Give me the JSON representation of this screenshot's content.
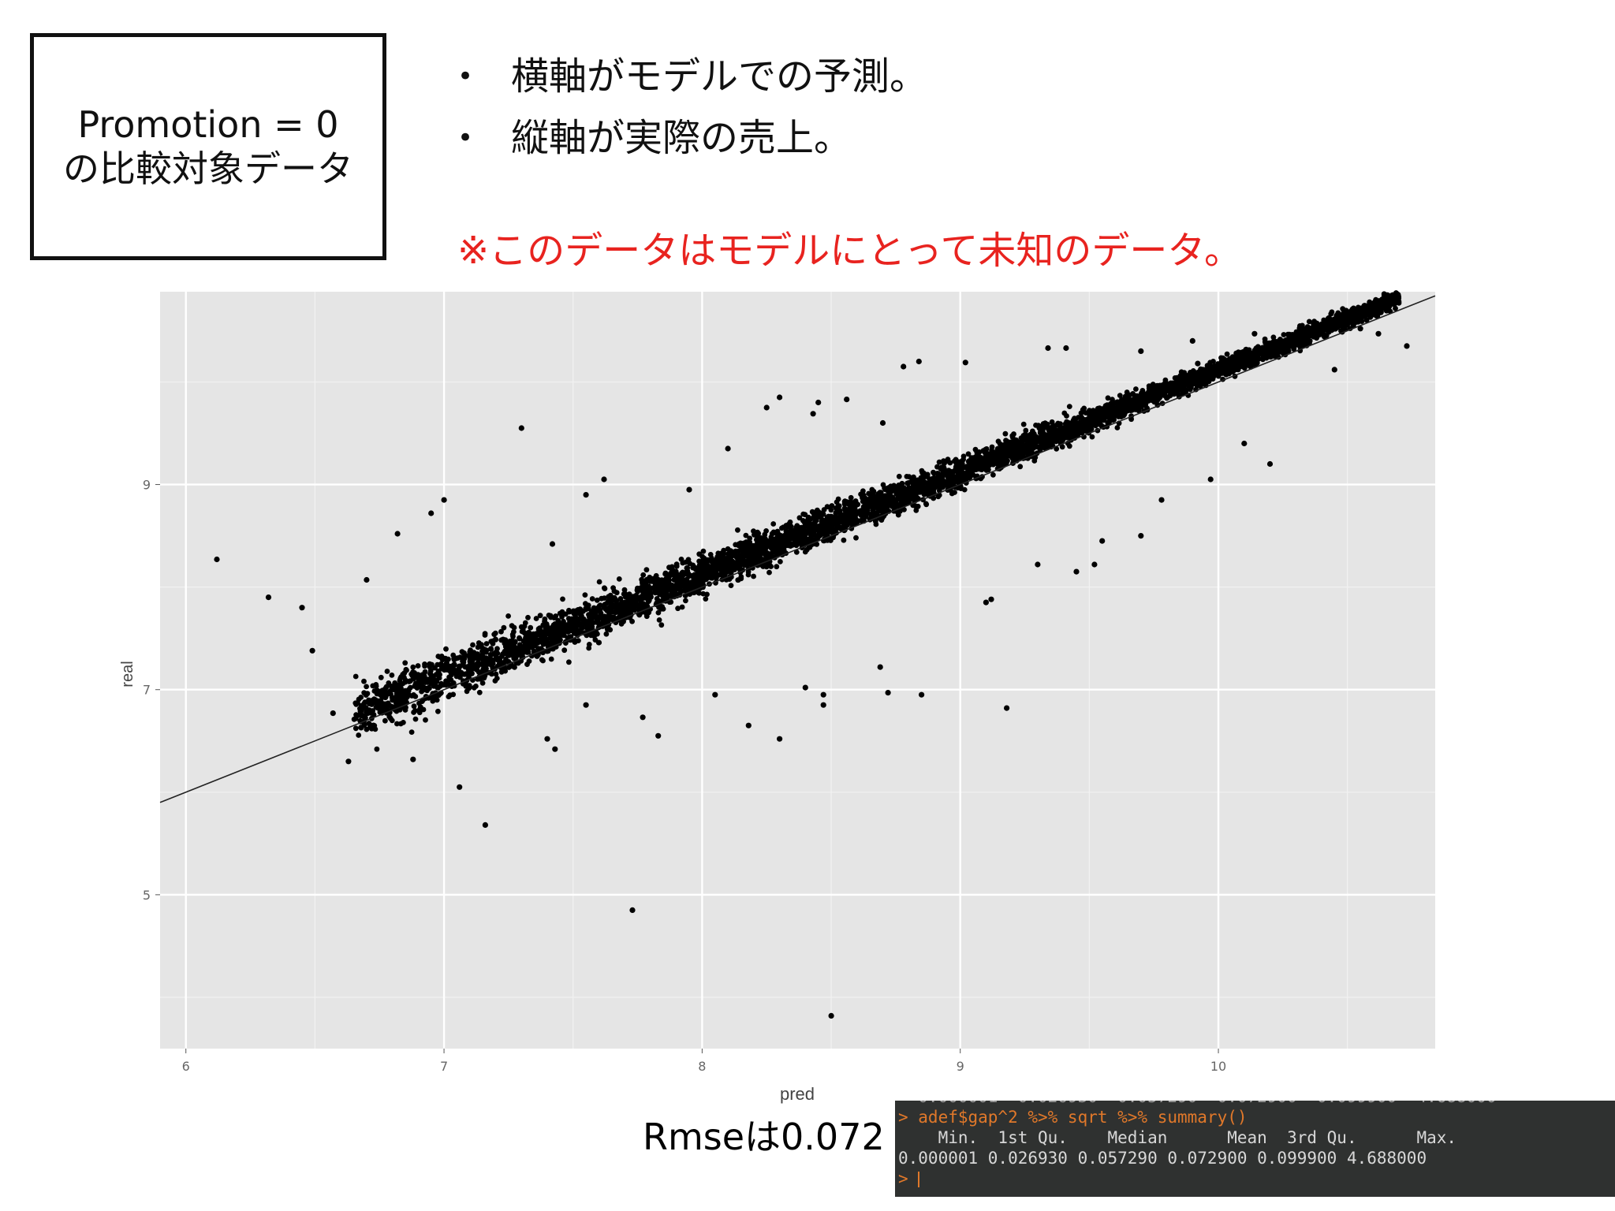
{
  "title_box": {
    "line1": "Promotion = 0",
    "line2": "の比較対象データ"
  },
  "bullets": [
    "横軸がモデルでの予測。",
    "縦軸が実際の売上。"
  ],
  "bullet_symbol": "•",
  "note": "※このデータはモデルにとって未知のデータ。",
  "note_color": "#e8231f",
  "rmse_label": "Rmseは0.072",
  "console": {
    "partial_line": "  0.000001  0.026930  0.057290  0.072900  0.099900  4.688000",
    "command": "> adef$gap^2 %>% sqrt %>% summary()",
    "header": "    Min.  1st Qu.    Median      Mean  3rd Qu.      Max.",
    "values": "0.000001 0.026930 0.057290 0.072900 0.099900 4.688000",
    "prompt": "> "
  },
  "chart_data": {
    "type": "scatter",
    "xlabel": "pred",
    "ylabel": "real",
    "xlim": [
      5.9,
      10.84
    ],
    "ylim": [
      3.5,
      10.88
    ],
    "x_ticks": [
      6,
      7,
      8,
      9,
      10
    ],
    "y_ticks": [
      5,
      7,
      9
    ],
    "grid": true,
    "background": "#e5e5e5",
    "point_color": "#000000",
    "reference_line": {
      "x": [
        5.9,
        10.84
      ],
      "y": [
        5.9,
        10.84
      ]
    },
    "outliers": [
      [
        6.12,
        8.27
      ],
      [
        6.49,
        7.38
      ],
      [
        6.7,
        8.07
      ],
      [
        6.82,
        8.52
      ],
      [
        6.95,
        8.72
      ],
      [
        6.63,
        6.3
      ],
      [
        7.06,
        6.05
      ],
      [
        7.16,
        5.68
      ],
      [
        7.73,
        4.85
      ],
      [
        8.5,
        3.82
      ],
      [
        9.18,
        6.82
      ],
      [
        9.1,
        7.85
      ],
      [
        9.12,
        7.88
      ],
      [
        7.4,
        6.52
      ],
      [
        7.43,
        6.42
      ],
      [
        7.83,
        6.55
      ],
      [
        7.77,
        6.73
      ],
      [
        8.3,
        6.52
      ],
      [
        8.18,
        6.65
      ],
      [
        8.72,
        6.97
      ],
      [
        8.47,
        6.95
      ],
      [
        8.47,
        6.85
      ],
      [
        8.85,
        6.95
      ],
      [
        8.69,
        7.22
      ],
      [
        8.3,
        9.85
      ],
      [
        8.43,
        9.69
      ],
      [
        8.45,
        9.8
      ],
      [
        8.56,
        9.83
      ],
      [
        8.78,
        10.15
      ],
      [
        8.84,
        10.2
      ],
      [
        9.02,
        10.19
      ],
      [
        9.34,
        10.33
      ],
      [
        9.41,
        10.33
      ],
      [
        9.9,
        10.4
      ],
      [
        10.14,
        10.47
      ],
      [
        10.36,
        10.47
      ],
      [
        10.55,
        10.52
      ],
      [
        10.62,
        10.47
      ],
      [
        10.73,
        10.35
      ],
      [
        10.45,
        10.12
      ],
      [
        7.3,
        9.55
      ],
      [
        7.0,
        8.85
      ],
      [
        6.57,
        6.77
      ],
      [
        6.72,
        6.62
      ],
      [
        6.88,
        6.32
      ],
      [
        7.55,
        8.9
      ],
      [
        7.62,
        9.05
      ],
      [
        7.42,
        8.42
      ],
      [
        9.3,
        8.22
      ],
      [
        9.52,
        8.22
      ],
      [
        9.78,
        8.85
      ],
      [
        9.97,
        9.05
      ],
      [
        10.1,
        9.4
      ],
      [
        9.7,
        8.5
      ],
      [
        9.45,
        8.15
      ],
      [
        7.95,
        8.95
      ],
      [
        8.1,
        9.35
      ],
      [
        9.7,
        10.3
      ],
      [
        9.92,
        10.18
      ],
      [
        8.25,
        9.75
      ],
      [
        8.7,
        9.6
      ],
      [
        6.45,
        7.8
      ],
      [
        6.32,
        7.9
      ],
      [
        7.1,
        7.15
      ],
      [
        8.05,
        6.95
      ],
      [
        8.4,
        7.02
      ],
      [
        7.55,
        6.85
      ],
      [
        9.55,
        8.45
      ],
      [
        10.2,
        9.2
      ]
    ],
    "dense_band": {
      "description": "main point cloud following y≈x with spread widening at lower x",
      "x_range": [
        6.65,
        10.7
      ]
    }
  }
}
